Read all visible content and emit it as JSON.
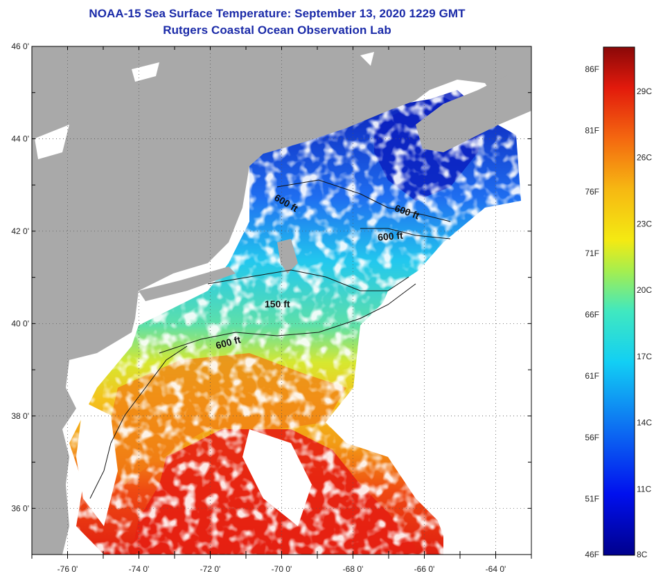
{
  "title": {
    "line1": "NOAA-15 Sea Surface Temperature:  September 13, 2020 1229 GMT",
    "line2": "Rutgers Coastal Ocean Observation Lab"
  },
  "map": {
    "lat_range": [
      35,
      46
    ],
    "lon_range": [
      -77,
      -63
    ],
    "lat_labels": [
      "46 0'",
      "44 0'",
      "42 0'",
      "40 0'",
      "38 0'",
      "36 0'"
    ],
    "lon_labels": [
      "-76 0'",
      "-74 0'",
      "-72 0'",
      "-70 0'",
      "-68 0'",
      "-66 0'",
      "-64 0'"
    ],
    "contour_labels": [
      "600 ft",
      "600 ft",
      "600 ft",
      "150 ft",
      "600 ft"
    ],
    "colors": {
      "land": "#a9a9a9",
      "cloud": "#ffffff",
      "grid": "#555555"
    }
  },
  "colorbar": {
    "f_labels": [
      "86F",
      "81F",
      "76F",
      "71F",
      "66F",
      "61F",
      "56F",
      "51F",
      "46F"
    ],
    "c_labels": [
      "29C",
      "26C",
      "23C",
      "20C",
      "17C",
      "14C",
      "11C",
      "8C"
    ],
    "range_c": [
      8,
      31
    ]
  }
}
